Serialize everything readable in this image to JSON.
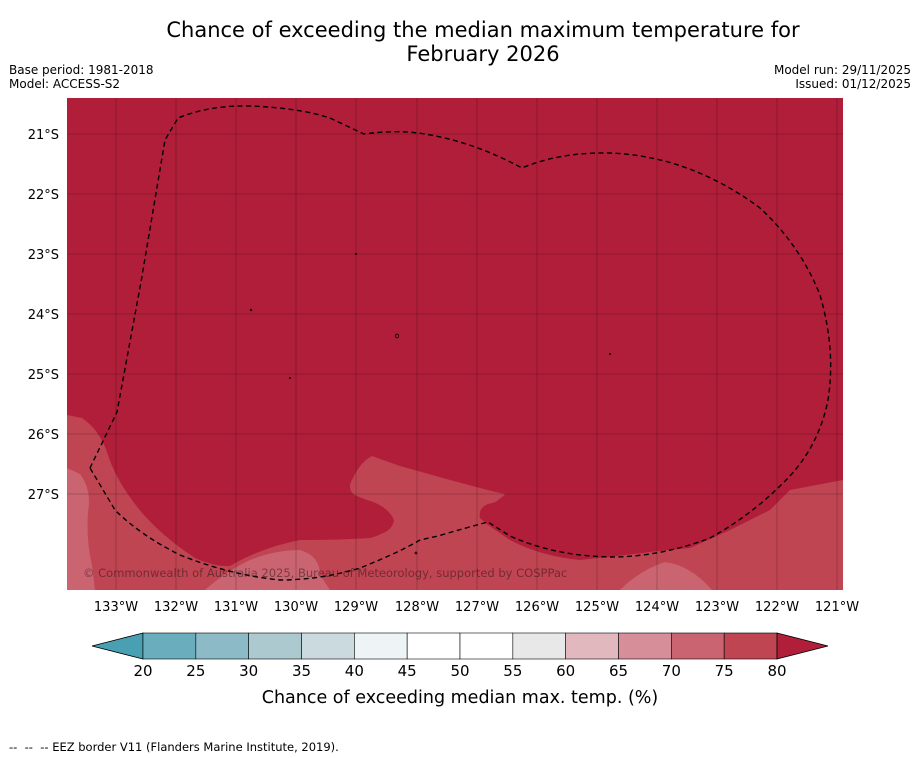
{
  "header": {
    "title_line1": "Chance of exceeding the median maximum temperature for",
    "title_line2": "February 2026",
    "base_period": "Base period: 1981-2018",
    "model": "Model: ACCESS-S2",
    "model_run": "Model run: 29/11/2025",
    "issued": "Issued: 01/12/2025"
  },
  "map": {
    "lat_labels": [
      "21°S",
      "22°S",
      "23°S",
      "24°S",
      "25°S",
      "26°S",
      "27°S"
    ],
    "lon_labels": [
      "133°W",
      "132°W",
      "131°W",
      "130°W",
      "129°W",
      "128°W",
      "127°W",
      "126°W",
      "125°W",
      "124°W",
      "123°W",
      "122°W",
      "121°W"
    ],
    "copyright": "© Commonwealth of Australia 2025, Bureau of Meteorology, supported by COSPPac",
    "background_color": "#b01e3a"
  },
  "colorbar": {
    "ticks": [
      "20",
      "25",
      "30",
      "35",
      "40",
      "45",
      "50",
      "55",
      "60",
      "65",
      "70",
      "75",
      "80"
    ],
    "label": "Chance of exceeding median max. temp. (%)",
    "colors": [
      "#6aaebd",
      "#8cbac6",
      "#abc9cf",
      "#cbdadf",
      "#eef3f5",
      "#ffffff",
      "#ffffff",
      "#e8e8e8",
      "#e2b8bf",
      "#d68f98",
      "#c96470",
      "#c04552"
    ],
    "under_color": "#48a0b2",
    "over_color": "#b01e3a"
  },
  "footer": {
    "dash_marker": "--  --  --",
    "eez_text": "EEZ border V11 (Flanders Marine Institute, 2019)."
  }
}
